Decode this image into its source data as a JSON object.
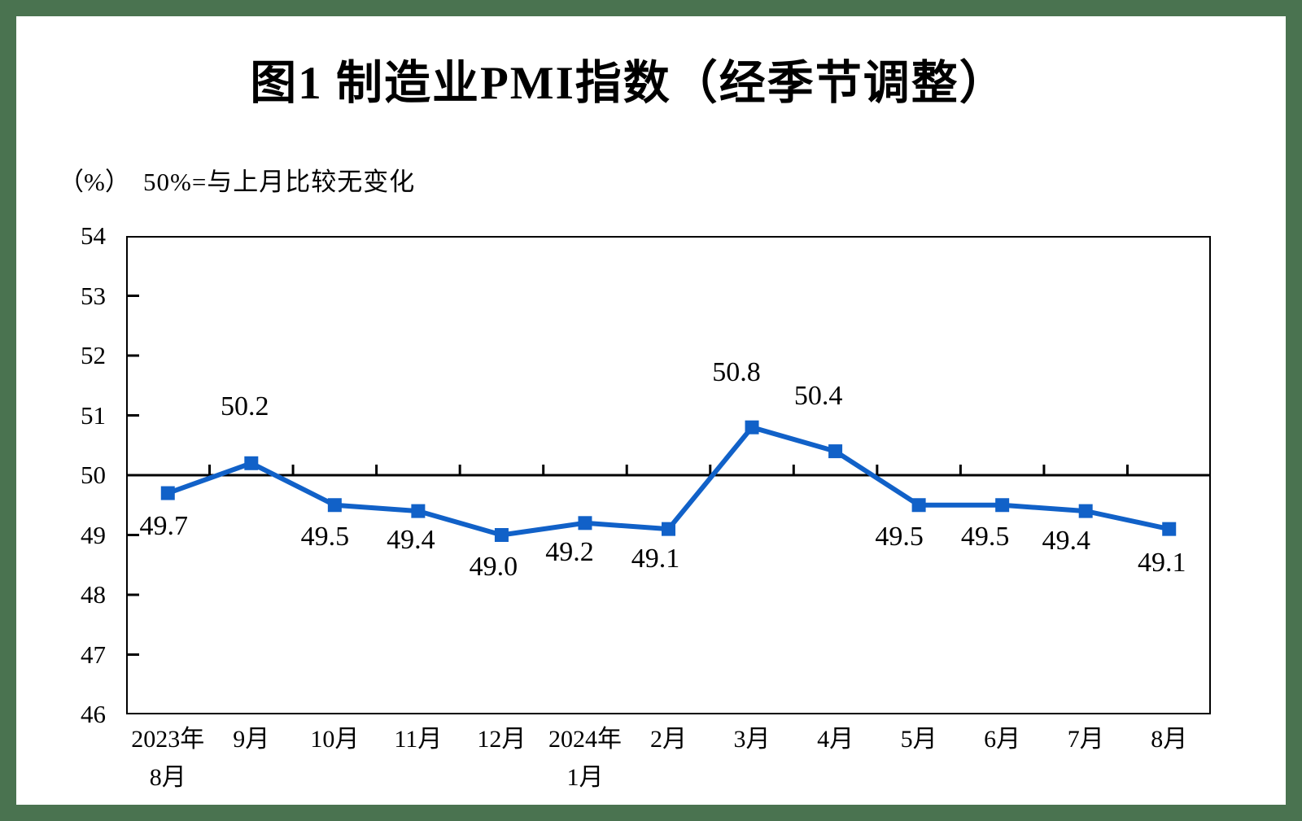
{
  "title": "图1 制造业PMI指数（经季节调整）",
  "chart_data": {
    "type": "line",
    "title": "图1 制造业PMI指数（经季节调整）",
    "unit_label": "（%）",
    "note": "50%=与上月比较无变化",
    "categories": [
      "2023年\n8月",
      "9月",
      "10月",
      "11月",
      "12月",
      "2024年\n1月",
      "2月",
      "3月",
      "4月",
      "5月",
      "6月",
      "7月",
      "8月"
    ],
    "series": [
      {
        "name": "制造业PMI指数",
        "values": [
          49.7,
          50.2,
          49.5,
          49.4,
          49.0,
          49.2,
          49.1,
          50.8,
          50.4,
          49.5,
          49.5,
          49.4,
          49.1
        ]
      }
    ],
    "ylim": [
      46,
      54
    ],
    "y_ticks": [
      46,
      47,
      48,
      49,
      50,
      51,
      52,
      53,
      54
    ],
    "reference_line": 50,
    "grid": false,
    "legend": "none",
    "marker": "square",
    "line_color": "#1161C8",
    "frame_color": "#4A7350",
    "axis_color": "#000000"
  }
}
